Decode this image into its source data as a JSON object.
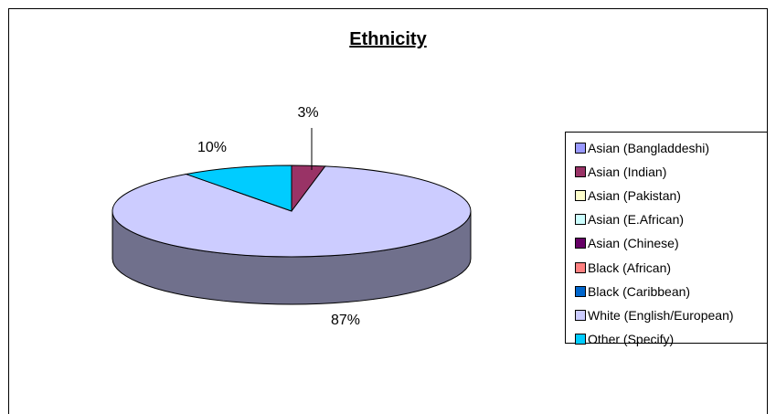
{
  "chart_data": {
    "type": "pie",
    "title": "Ethnicity",
    "legend_position": "right",
    "slices": [
      {
        "label": "Asian (Bangladdeshi)",
        "value": 0,
        "color": "#9999ff"
      },
      {
        "label": "Asian (Indian)",
        "value": 3,
        "color": "#993366"
      },
      {
        "label": "Asian (Pakistan)",
        "value": 0,
        "color": "#ffffcc"
      },
      {
        "label": "Asian (E.African)",
        "value": 0,
        "color": "#ccffff"
      },
      {
        "label": "Asian (Chinese)",
        "value": 0,
        "color": "#660066"
      },
      {
        "label": "Black (African)",
        "value": 0,
        "color": "#ff8080"
      },
      {
        "label": "Black (Caribbean)",
        "value": 0,
        "color": "#0066cc"
      },
      {
        "label": "White (English/European)",
        "value": 87,
        "color": "#ccccff"
      },
      {
        "label": "Other (Specify)",
        "value": 10,
        "color": "#00ccff"
      }
    ],
    "data_labels": [
      "3%",
      "87%",
      "10%"
    ]
  }
}
